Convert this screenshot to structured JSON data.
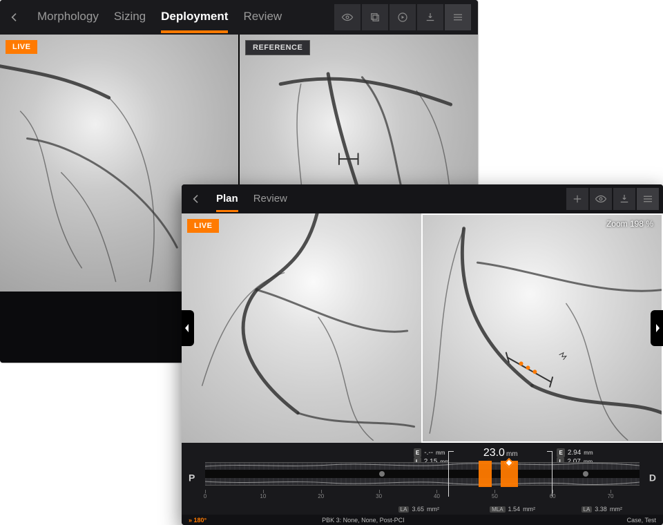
{
  "colors": {
    "accent": "#ff7a00",
    "bg_dark": "#101012",
    "bg_darker": "#0b0b0d",
    "panel": "#1a1a1d",
    "iconbtn": "#2f2f33",
    "text_muted": "#9a9a9a",
    "text": "#e0e0e0",
    "angio_bg": "#cfcfcf",
    "white": "#ffffff"
  },
  "back": {
    "tabs": [
      "Morphology",
      "Sizing",
      "Deployment",
      "Review"
    ],
    "active_tab": 2,
    "toolbar_icons": [
      "eye-icon",
      "copy-icon",
      "play-icon",
      "export-icon",
      "menu-icon"
    ],
    "panes": {
      "left_badge": "LIVE",
      "right_badge": "REFERENCE"
    }
  },
  "front": {
    "tabs": [
      "Plan",
      "Review"
    ],
    "active_tab": 0,
    "toolbar_icons": [
      "plus-icon",
      "eye-icon",
      "export-icon",
      "menu-icon"
    ],
    "live_badge": "LIVE",
    "zoom_label": "Zoom  198 %",
    "ivus": {
      "p_label": "P",
      "d_label": "D",
      "left_meas": {
        "e_mm": "-.--",
        "l_mm": "2.15",
        "unit": "mm"
      },
      "right_meas": {
        "e_mm": "2.94",
        "l_mm": "2.07",
        "unit": "mm"
      },
      "center_len": "23.0",
      "center_unit": "mm",
      "bracket_left_pct": 56,
      "bracket_right_pct": 80,
      "orange_segs": [
        {
          "left_pct": 63,
          "w_pct": 3
        },
        {
          "left_pct": 68,
          "w_pct": 4
        }
      ],
      "handle_pct": 70,
      "ruler_ticks": [
        0,
        10,
        20,
        30,
        40,
        50,
        60,
        70
      ],
      "ruler_max": 75,
      "mla_left": "3.65",
      "mla_center": "1.54",
      "mla_right": "3.38",
      "mla_unit": "mm²",
      "chip_la": "LA",
      "chip_mla": "MLA",
      "chip_e": "E",
      "chip_l": "L"
    },
    "footer": {
      "angle": "» 180°",
      "pbk": "PBK 3:  None, None,  Post-PCI",
      "case": "Case,  Test"
    }
  }
}
